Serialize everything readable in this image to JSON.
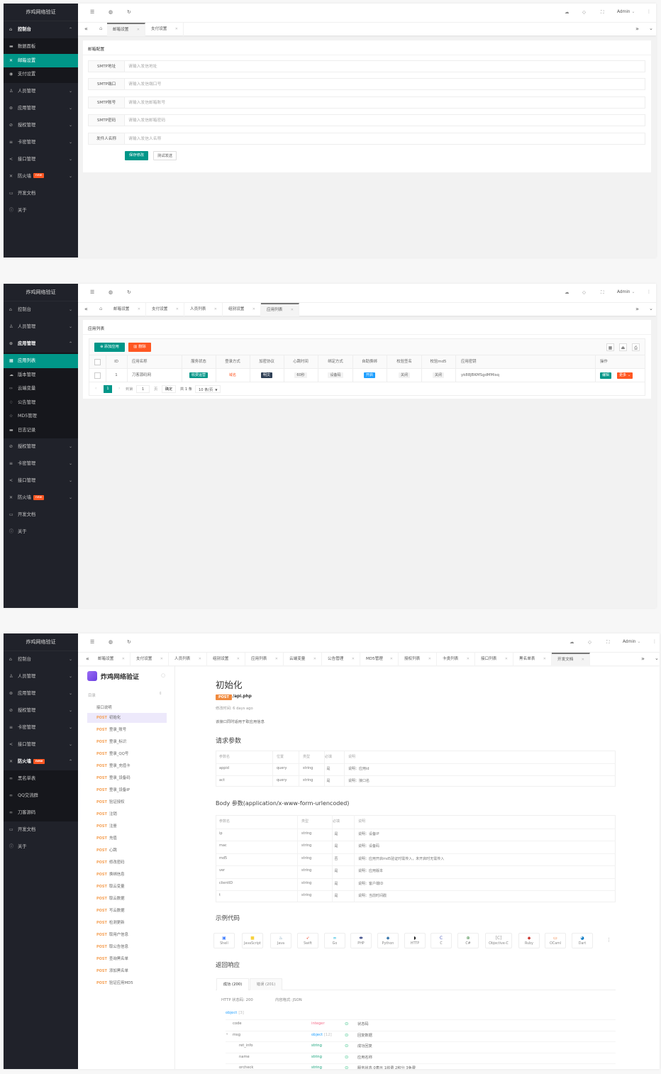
{
  "brand": "炸鸡网络验证",
  "header": {
    "admin": "Admin",
    "icons": [
      "menu-icon",
      "globe-icon",
      "refresh-icon",
      "theme-icon",
      "tag-icon",
      "fullscreen-icon",
      "more-icon"
    ]
  },
  "colors": {
    "sidebar": "#20222a",
    "accent": "#009688",
    "danger": "#ff5722",
    "info": "#1e9fff",
    "post": "#f5a054"
  },
  "panels": [
    {
      "sidebar": [
        {
          "label": "控制台",
          "icon": "home-icon",
          "chev": "up",
          "children": [
            {
              "label": "数据面板",
              "icon": "dashboard-icon"
            },
            {
              "label": "邮箱设置",
              "icon": "mail-icon",
              "active": true
            },
            {
              "label": "支付设置",
              "icon": "payment-icon"
            }
          ]
        },
        {
          "label": "人员管理",
          "icon": "user-icon",
          "chev": "down"
        },
        {
          "label": "应用管理",
          "icon": "app-icon",
          "chev": "down"
        },
        {
          "label": "授权管理",
          "icon": "shield-icon",
          "chev": "down"
        },
        {
          "label": "卡密管理",
          "icon": "database-icon",
          "chev": "down"
        },
        {
          "label": "接口管理",
          "icon": "share-icon",
          "chev": "down"
        },
        {
          "label": "防火墙",
          "icon": "firewall-icon",
          "chev": "down",
          "badge": "new"
        },
        {
          "label": "开发文档",
          "icon": "book-icon"
        },
        {
          "label": "关于",
          "icon": "info-icon"
        }
      ],
      "tabs": [
        {
          "label": "邮箱设置",
          "active": true
        },
        {
          "label": "支付设置"
        }
      ],
      "card_title": "邮箱配置",
      "form": [
        {
          "label": "SMTP地址",
          "placeholder": "请输入发信地址",
          "value": ""
        },
        {
          "label": "SMTP端口",
          "placeholder": "请输入发信端口号",
          "value": ""
        },
        {
          "label": "SMTP账号",
          "placeholder": "请输入发信邮箱账号",
          "value": ""
        },
        {
          "label": "SMTP密码",
          "placeholder": "请输入发信邮箱密码",
          "value": ""
        },
        {
          "label": "发件人名称",
          "placeholder": "请输入发信人名称",
          "value": ""
        }
      ],
      "save": "保存修改",
      "test": "测试发送"
    },
    {
      "sidebar": [
        {
          "label": "控制台",
          "icon": "home-icon",
          "chev": "down"
        },
        {
          "label": "人员管理",
          "icon": "user-icon",
          "chev": "down"
        },
        {
          "label": "应用管理",
          "icon": "app-icon",
          "chev": "up",
          "children": [
            {
              "label": "应用列表",
              "icon": "list-icon",
              "active": true
            },
            {
              "label": "版本管理",
              "icon": "cloud-icon"
            },
            {
              "label": "云端变量",
              "icon": "code-icon"
            },
            {
              "label": "公告管理",
              "icon": "bell-icon"
            },
            {
              "label": "MD5管理",
              "icon": "star-icon"
            },
            {
              "label": "日志记录",
              "icon": "log-icon"
            }
          ]
        },
        {
          "label": "授权管理",
          "icon": "shield-icon",
          "chev": "down"
        },
        {
          "label": "卡密管理",
          "icon": "database-icon",
          "chev": "down"
        },
        {
          "label": "接口管理",
          "icon": "share-icon",
          "chev": "down"
        },
        {
          "label": "防火墙",
          "icon": "firewall-icon",
          "chev": "down",
          "badge": "new"
        },
        {
          "label": "开发文档",
          "icon": "book-icon"
        },
        {
          "label": "关于",
          "icon": "info-icon"
        }
      ],
      "tabs": [
        {
          "label": "邮箱设置"
        },
        {
          "label": "支付设置"
        },
        {
          "label": "人员列表"
        },
        {
          "label": "组别设置"
        },
        {
          "label": "应用列表",
          "active": true
        }
      ],
      "card_title": "应用列表",
      "add": "添加应用",
      "del": "删除",
      "columns": [
        "ID",
        "应用名称",
        "服务状态",
        "登录方式",
        "加密协议",
        "心跳时间",
        "绑定方式",
        "自助换绑",
        "校验签名",
        "校验md5",
        "应用密钥",
        "操作"
      ],
      "rows": [
        {
          "id": "1",
          "name": "刀客源码网",
          "status": "收费运营",
          "login": "域名",
          "enc": "明文",
          "heartbeat": "60秒",
          "bind": "设备码",
          "rebind": "开启",
          "sign": "关闭",
          "md5": "关闭",
          "key": "yk88JBKMSgdMMisq",
          "edit": "编辑",
          "more": "更多"
        }
      ],
      "pager": {
        "page": "1",
        "goto": "到第",
        "input": "1",
        "unit": "页",
        "ok": "确定",
        "total": "共 1 条",
        "size": "10 条/页"
      }
    },
    {
      "sidebar": [
        {
          "label": "控制台",
          "icon": "home-icon",
          "chev": "down"
        },
        {
          "label": "人员管理",
          "icon": "user-icon",
          "chev": "down"
        },
        {
          "label": "应用管理",
          "icon": "app-icon",
          "chev": "down"
        },
        {
          "label": "授权管理",
          "icon": "shield-icon",
          "chev": "down"
        },
        {
          "label": "卡密管理",
          "icon": "database-icon",
          "chev": "down"
        },
        {
          "label": "接口管理",
          "icon": "share-icon",
          "chev": "down"
        },
        {
          "label": "防火墙",
          "icon": "firewall-icon",
          "chev": "up",
          "badge": "new",
          "children": [
            {
              "label": "黑名单表",
              "icon": "link-icon"
            },
            {
              "label": "QQ交流群",
              "icon": "link-icon"
            },
            {
              "label": "刀客源码",
              "icon": "link-icon"
            }
          ]
        },
        {
          "label": "开发文档",
          "icon": "book-icon"
        },
        {
          "label": "关于",
          "icon": "info-icon"
        }
      ],
      "tabs": [
        {
          "label": "邮箱设置"
        },
        {
          "label": "支付设置"
        },
        {
          "label": "人员列表"
        },
        {
          "label": "组别设置"
        },
        {
          "label": "应用列表"
        },
        {
          "label": "云端变量"
        },
        {
          "label": "公告管理"
        },
        {
          "label": "MD5管理"
        },
        {
          "label": "授权列表"
        },
        {
          "label": "卡类列表"
        },
        {
          "label": "接口列表"
        },
        {
          "label": "黑名单表"
        },
        {
          "label": "开发文档",
          "active": true
        }
      ],
      "doc": {
        "title": "炸鸡网络验证",
        "toc": "目录",
        "intro": "接口说明",
        "method": "POST",
        "apis": [
          "初始化",
          "登录_账号",
          "登录_标识",
          "登录_QQ号",
          "登录_充值卡",
          "登录_设备码",
          "登录_设备IP",
          "验证授权",
          "注销",
          "注册",
          "充值",
          "心跳",
          "修改密码",
          "换绑信息",
          "取云变量",
          "取云数据",
          "写云数据",
          "检测更新",
          "取用户信息",
          "取公告信息",
          "查询黑名单",
          "添加黑名单",
          "验证应用MD5"
        ],
        "active_api": "初始化",
        "path": "/api.php",
        "modified": "修改时间: 6 days ago",
        "desc": "该接口同时适用于取应用信息",
        "req_title": "请求参数",
        "req_cols": [
          "参数名",
          "位置",
          "类型",
          "必填",
          "说明"
        ],
        "req_rows": [
          [
            "appid",
            "query",
            "string",
            "是",
            "说明：应用id"
          ],
          [
            "act",
            "query",
            "string",
            "是",
            "说明：接口名"
          ]
        ],
        "body_title": "Body 参数(application/x-www-form-urlencoded)",
        "body_cols": [
          "参数名",
          "类型",
          "必填",
          "说明"
        ],
        "body_rows": [
          [
            "ip",
            "string",
            "是",
            "说明：设备IP"
          ],
          [
            "mac",
            "string",
            "是",
            "说明：设备码"
          ],
          [
            "md5",
            "string",
            "否",
            "说明：应用开启md5验证时需传入，未开启时无需传入"
          ],
          [
            "ver",
            "string",
            "是",
            "说明：应用版本"
          ],
          [
            "clientID",
            "string",
            "是",
            "说明：客户端ID"
          ],
          [
            "t",
            "string",
            "是",
            "说明：当前时间戳"
          ]
        ],
        "code_title": "示例代码",
        "langs": [
          "Shell",
          "JavaScript",
          "Java",
          "Swift",
          "Go",
          "PHP",
          "Python",
          "HTTP",
          "C",
          "C#",
          "Objective-C",
          "Ruby",
          "OCaml",
          "Dart"
        ],
        "resp_title": "返回响应",
        "resp_tabs": [
          "成功 (200)",
          "错误 (201)"
        ],
        "http_status": "HTTP 状态码: 200",
        "content_type": "内容格式: JSON",
        "root": "object",
        "root_count": "[3]",
        "fields": [
          {
            "name": "code",
            "type": "integer",
            "desc": "状态码",
            "level": 1
          },
          {
            "name": "msg",
            "type": "object",
            "count": "[12]",
            "desc": "回复数据",
            "level": 1,
            "expand": true
          },
          {
            "name": "ret_info",
            "type": "string",
            "desc": "成功回复",
            "level": 2
          },
          {
            "name": "name",
            "type": "string",
            "desc": "应用名称",
            "level": 2
          },
          {
            "name": "orcheck",
            "type": "string",
            "desc": "服务状态 0表示 1收费 2积分 3免费",
            "level": 2
          }
        ]
      }
    }
  ]
}
